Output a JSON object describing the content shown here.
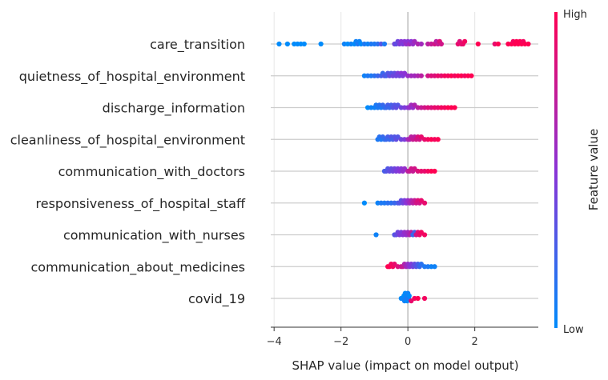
{
  "chart_data": {
    "type": "scatter",
    "subtype": "shap-beeswarm",
    "xlabel": "SHAP value (impact on model output)",
    "xlim": [
      -4.1,
      3.9
    ],
    "xticks": [
      -4,
      -2,
      0,
      2
    ],
    "xtick_labels": [
      "−4",
      "−2",
      "0",
      "2"
    ],
    "colorbar": {
      "label": "Feature value",
      "high_label": "High",
      "low_label": "Low",
      "high_color": "#ff0052",
      "low_color": "#008bfb"
    },
    "features": [
      {
        "name": "care_transition",
        "x": [
          -3.85,
          -3.6,
          -3.4,
          -3.3,
          -3.2,
          -3.1,
          -2.6,
          -1.9,
          -1.8,
          -1.7,
          -1.6,
          -1.55,
          -1.5,
          -1.45,
          -1.4,
          -1.3,
          -1.2,
          -1.1,
          -1.0,
          -0.9,
          -0.8,
          -0.7,
          -0.4,
          -0.35,
          -0.3,
          -0.25,
          -0.2,
          -0.15,
          -0.1,
          -0.05,
          0.0,
          0.05,
          0.1,
          0.15,
          0.2,
          0.3,
          0.4,
          0.6,
          0.7,
          0.8,
          0.85,
          0.9,
          0.95,
          1.0,
          1.5,
          1.55,
          1.6,
          1.65,
          1.7,
          2.1,
          2.6,
          2.7,
          3.0,
          3.1,
          3.15,
          3.2,
          3.25,
          3.3,
          3.35,
          3.4,
          3.45,
          3.5,
          3.6
        ],
        "v": [
          0,
          0,
          0,
          0,
          0,
          0,
          0,
          0.05,
          0,
          0.05,
          0,
          0.05,
          0.1,
          0.05,
          0,
          0.1,
          0.05,
          0.1,
          0.1,
          0.15,
          0.3,
          0.1,
          0.4,
          0.35,
          0.4,
          0.45,
          0.5,
          0.45,
          0.5,
          0.55,
          0.5,
          0.6,
          0.5,
          0.55,
          0.6,
          0.65,
          0.6,
          0.7,
          0.75,
          0.8,
          0.7,
          0.75,
          0.85,
          0.8,
          0.9,
          0.85,
          0.9,
          0.9,
          0.95,
          1,
          0.9,
          1,
          1,
          1,
          0.95,
          1,
          1,
          1,
          1,
          1,
          0.95,
          1,
          1
        ]
      },
      {
        "name": "quietness_of_hospital_environment",
        "x": [
          -1.3,
          -1.2,
          -1.1,
          -1.0,
          -0.9,
          -0.8,
          -0.75,
          -0.7,
          -0.65,
          -0.6,
          -0.55,
          -0.5,
          -0.45,
          -0.4,
          -0.35,
          -0.3,
          -0.25,
          -0.2,
          -0.15,
          -0.1,
          0.0,
          0.1,
          0.2,
          0.3,
          0.4,
          0.6,
          0.7,
          0.8,
          0.9,
          1.0,
          1.1,
          1.2,
          1.3,
          1.4,
          1.5,
          1.6,
          1.7,
          1.8,
          1.9
        ],
        "v": [
          0.05,
          0.1,
          0.1,
          0.15,
          0.2,
          0.25,
          0.2,
          0.3,
          0.25,
          0.3,
          0.35,
          0.3,
          0.4,
          0.35,
          0.4,
          0.45,
          0.4,
          0.5,
          0.45,
          0.5,
          0.55,
          0.6,
          0.6,
          0.65,
          0.7,
          0.8,
          0.85,
          0.85,
          0.9,
          0.9,
          0.95,
          0.95,
          1,
          0.95,
          1,
          1,
          0.95,
          1,
          1
        ]
      },
      {
        "name": "discharge_information",
        "x": [
          -1.2,
          -1.1,
          -1.0,
          -0.95,
          -0.9,
          -0.85,
          -0.8,
          -0.75,
          -0.7,
          -0.65,
          -0.6,
          -0.55,
          -0.5,
          -0.45,
          -0.4,
          -0.35,
          -0.3,
          -0.2,
          -0.1,
          0.0,
          0.05,
          0.1,
          0.15,
          0.2,
          0.3,
          0.4,
          0.5,
          0.6,
          0.7,
          0.8,
          0.9,
          1.0,
          1.1,
          1.2,
          1.3,
          1.4
        ],
        "v": [
          0,
          0.05,
          0.05,
          0.1,
          0.1,
          0.15,
          0.1,
          0.2,
          0.15,
          0.2,
          0.25,
          0.2,
          0.25,
          0.3,
          0.3,
          0.35,
          0.3,
          0.4,
          0.45,
          0.5,
          0.55,
          0.6,
          0.55,
          0.65,
          0.7,
          0.75,
          0.8,
          0.85,
          0.85,
          0.9,
          0.9,
          0.95,
          0.95,
          1,
          1,
          1
        ]
      },
      {
        "name": "cleanliness_of_hospital_environment",
        "x": [
          -0.9,
          -0.85,
          -0.8,
          -0.75,
          -0.7,
          -0.65,
          -0.6,
          -0.55,
          -0.5,
          -0.45,
          -0.4,
          -0.35,
          -0.3,
          -0.2,
          -0.1,
          0.0,
          0.05,
          0.1,
          0.15,
          0.2,
          0.25,
          0.3,
          0.35,
          0.4,
          0.5,
          0.6,
          0.7,
          0.8,
          0.9
        ],
        "v": [
          0.1,
          0.15,
          0.1,
          0.2,
          0.15,
          0.2,
          0.25,
          0.2,
          0.3,
          0.25,
          0.3,
          0.35,
          0.3,
          0.4,
          0.45,
          0.6,
          0.65,
          0.7,
          0.75,
          0.7,
          0.8,
          0.85,
          0.8,
          0.9,
          0.9,
          0.95,
          1,
          0.95,
          1
        ]
      },
      {
        "name": "communication_with_doctors",
        "x": [
          -0.7,
          -0.65,
          -0.6,
          -0.55,
          -0.5,
          -0.45,
          -0.4,
          -0.35,
          -0.3,
          -0.25,
          -0.2,
          -0.15,
          -0.1,
          0.0,
          0.05,
          0.1,
          0.15,
          0.2,
          0.3,
          0.4,
          0.5,
          0.6,
          0.7,
          0.8
        ],
        "v": [
          0.25,
          0.3,
          0.3,
          0.35,
          0.35,
          0.4,
          0.4,
          0.45,
          0.45,
          0.5,
          0.5,
          0.55,
          0.55,
          0.7,
          0.75,
          0.8,
          0.75,
          0.8,
          0.85,
          0.9,
          0.9,
          0.95,
          1,
          1
        ]
      },
      {
        "name": "responsiveness_of_hospital_staff",
        "x": [
          -1.3,
          -0.9,
          -0.8,
          -0.7,
          -0.6,
          -0.5,
          -0.4,
          -0.3,
          -0.25,
          -0.2,
          -0.15,
          -0.1,
          -0.05,
          0.0,
          0.05,
          0.1,
          0.15,
          0.2,
          0.25,
          0.3,
          0.35,
          0.4,
          0.5
        ],
        "v": [
          0,
          0.05,
          0.1,
          0.1,
          0.15,
          0.15,
          0.2,
          0.25,
          0.3,
          0.35,
          0.4,
          0.45,
          0.5,
          0.55,
          0.6,
          0.65,
          0.7,
          0.75,
          0.8,
          0.85,
          0.8,
          0.9,
          0.9
        ]
      },
      {
        "name": "communication_with_nurses",
        "x": [
          -0.95,
          -0.4,
          -0.35,
          -0.3,
          -0.25,
          -0.2,
          -0.15,
          -0.1,
          -0.05,
          0.0,
          0.05,
          0.1,
          0.15,
          0.2,
          0.25,
          0.3,
          0.35,
          0.4,
          0.5
        ],
        "v": [
          0.05,
          0.3,
          0.35,
          0.4,
          0.45,
          0.45,
          0.5,
          0.55,
          0.55,
          0.6,
          0.65,
          0.7,
          0.2,
          0.25,
          0.8,
          0.85,
          0.9,
          0.95,
          0.95
        ]
      },
      {
        "name": "communication_about_medicines",
        "x": [
          -0.6,
          -0.55,
          -0.5,
          -0.45,
          -0.4,
          -0.3,
          -0.2,
          -0.15,
          -0.1,
          -0.05,
          0.0,
          0.05,
          0.1,
          0.15,
          0.2,
          0.25,
          0.3,
          0.35,
          0.4,
          0.5,
          0.6,
          0.7,
          0.8
        ],
        "v": [
          1,
          1,
          0.95,
          0.95,
          0.9,
          0.85,
          0.8,
          0.75,
          0.65,
          0.6,
          0.55,
          0.5,
          0.45,
          0.4,
          0.35,
          0.3,
          0.25,
          0.2,
          0.15,
          0.1,
          0.1,
          0.05,
          0.05
        ]
      },
      {
        "name": "covid_19",
        "x": [
          -0.2,
          -0.15,
          -0.12,
          -0.1,
          -0.08,
          -0.06,
          -0.04,
          -0.02,
          0.0,
          0.02,
          0.04,
          0.1,
          0.2,
          0.3,
          0.5
        ],
        "v": [
          0,
          0.05,
          0,
          0.05,
          0,
          0.1,
          0.05,
          0,
          0.05,
          0.1,
          0,
          0.9,
          0.95,
          1,
          0.95
        ]
      }
    ]
  }
}
